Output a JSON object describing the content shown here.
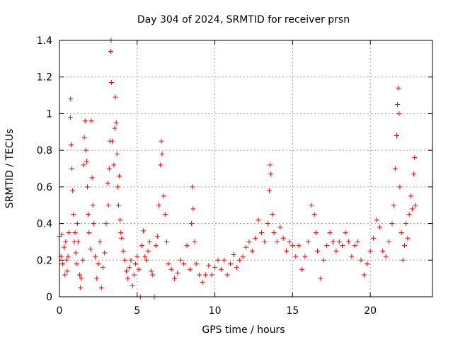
{
  "chart_data": {
    "type": "scatter",
    "title": "Day 304 of 2024, SRMTID for receiver prsn",
    "xlabel": "GPS time / hours",
    "ylabel": "SRMTID / TECUs",
    "xlim": [
      0,
      24
    ],
    "ylim": [
      0,
      1.4
    ],
    "xticks": [
      0,
      5,
      10,
      15,
      20
    ],
    "xtick_labels": [
      "0",
      "5",
      "10",
      "15",
      "20"
    ],
    "yticks": [
      0,
      0.2,
      0.4,
      0.6,
      0.8,
      1.0,
      1.2,
      1.4
    ],
    "ytick_labels": [
      "0",
      "0.2",
      "0.4",
      "0.6",
      "0.8",
      "1",
      "1.2",
      "1.4"
    ],
    "grid": true,
    "marker": "+",
    "color": "#ff0000",
    "series": [
      {
        "name": "SRMTID",
        "points": [
          [
            0.0,
            0.33
          ],
          [
            0.1,
            0.22
          ],
          [
            0.15,
            0.34
          ],
          [
            0.2,
            0.18
          ],
          [
            0.3,
            0.27
          ],
          [
            0.35,
            0.12
          ],
          [
            0.4,
            0.3
          ],
          [
            0.45,
            0.2
          ],
          [
            0.5,
            0.14
          ],
          [
            0.55,
            0.22
          ],
          [
            0.6,
            0.35
          ],
          [
            0.7,
            0.98
          ],
          [
            0.72,
            1.08
          ],
          [
            0.75,
            0.83
          ],
          [
            0.8,
            0.7
          ],
          [
            0.85,
            0.58
          ],
          [
            0.9,
            0.45
          ],
          [
            0.95,
            0.3
          ],
          [
            1.0,
            0.35
          ],
          [
            1.05,
            0.24
          ],
          [
            1.1,
            0.18
          ],
          [
            1.15,
            0.4
          ],
          [
            1.2,
            0.3
          ],
          [
            1.3,
            0.12
          ],
          [
            1.35,
            0.05
          ],
          [
            1.4,
            0.1
          ],
          [
            1.5,
            0.2
          ],
          [
            1.55,
            0.72
          ],
          [
            1.6,
            0.87
          ],
          [
            1.65,
            0.96
          ],
          [
            1.7,
            0.8
          ],
          [
            1.75,
            0.74
          ],
          [
            1.8,
            0.6
          ],
          [
            1.85,
            0.45
          ],
          [
            1.9,
            0.35
          ],
          [
            2.0,
            0.26
          ],
          [
            2.05,
            0.96
          ],
          [
            2.1,
            0.65
          ],
          [
            2.15,
            0.5
          ],
          [
            2.2,
            0.4
          ],
          [
            2.3,
            0.22
          ],
          [
            2.4,
            0.1
          ],
          [
            2.5,
            0.18
          ],
          [
            2.6,
            0.3
          ],
          [
            2.7,
            0.05
          ],
          [
            2.8,
            0.16
          ],
          [
            2.9,
            0.24
          ],
          [
            3.0,
            0.4
          ],
          [
            3.1,
            0.62
          ],
          [
            3.15,
            0.5
          ],
          [
            3.2,
            0.7
          ],
          [
            3.25,
            0.85
          ],
          [
            3.3,
            1.34
          ],
          [
            3.32,
            1.4
          ],
          [
            3.34,
            1.17
          ],
          [
            3.4,
            0.85
          ],
          [
            3.5,
            0.72
          ],
          [
            3.55,
            0.92
          ],
          [
            3.6,
            1.09
          ],
          [
            3.65,
            0.95
          ],
          [
            3.7,
            0.78
          ],
          [
            3.75,
            0.6
          ],
          [
            3.8,
            0.5
          ],
          [
            3.85,
            0.66
          ],
          [
            3.9,
            0.42
          ],
          [
            3.95,
            0.35
          ],
          [
            4.0,
            0.32
          ],
          [
            4.1,
            0.25
          ],
          [
            4.2,
            0.2
          ],
          [
            4.3,
            0.14
          ],
          [
            4.4,
            0.1
          ],
          [
            4.5,
            0.16
          ],
          [
            4.6,
            0.2
          ],
          [
            4.7,
            0.06
          ],
          [
            4.8,
            0.12
          ],
          [
            4.9,
            0.18
          ],
          [
            5.0,
            0.22
          ],
          [
            5.1,
            0.15
          ],
          [
            5.2,
            0.0
          ],
          [
            5.3,
            0.28
          ],
          [
            5.4,
            0.36
          ],
          [
            5.5,
            0.22
          ],
          [
            5.6,
            0.2
          ],
          [
            5.7,
            0.25
          ],
          [
            5.8,
            0.3
          ],
          [
            5.9,
            0.14
          ],
          [
            6.0,
            0.12
          ],
          [
            6.1,
            0.0
          ],
          [
            6.2,
            0.28
          ],
          [
            6.3,
            0.33
          ],
          [
            6.4,
            0.5
          ],
          [
            6.5,
            0.72
          ],
          [
            6.55,
            0.85
          ],
          [
            6.6,
            0.78
          ],
          [
            6.7,
            0.55
          ],
          [
            6.8,
            0.45
          ],
          [
            6.9,
            0.3
          ],
          [
            7.0,
            0.18
          ],
          [
            7.2,
            0.15
          ],
          [
            7.4,
            0.1
          ],
          [
            7.6,
            0.13
          ],
          [
            7.8,
            0.2
          ],
          [
            8.0,
            0.18
          ],
          [
            8.2,
            0.28
          ],
          [
            8.4,
            0.15
          ],
          [
            8.5,
            0.4
          ],
          [
            8.55,
            0.6
          ],
          [
            8.6,
            0.48
          ],
          [
            8.7,
            0.3
          ],
          [
            8.8,
            0.18
          ],
          [
            9.0,
            0.12
          ],
          [
            9.2,
            0.08
          ],
          [
            9.4,
            0.12
          ],
          [
            9.6,
            0.17
          ],
          [
            9.8,
            0.12
          ],
          [
            10.0,
            0.16
          ],
          [
            10.2,
            0.2
          ],
          [
            10.4,
            0.15
          ],
          [
            10.6,
            0.2
          ],
          [
            10.8,
            0.12
          ],
          [
            11.0,
            0.18
          ],
          [
            11.2,
            0.23
          ],
          [
            11.4,
            0.16
          ],
          [
            11.6,
            0.2
          ],
          [
            11.8,
            0.22
          ],
          [
            12.0,
            0.27
          ],
          [
            12.2,
            0.3
          ],
          [
            12.4,
            0.25
          ],
          [
            12.6,
            0.32
          ],
          [
            12.8,
            0.42
          ],
          [
            13.0,
            0.35
          ],
          [
            13.2,
            0.3
          ],
          [
            13.4,
            0.4
          ],
          [
            13.5,
            0.58
          ],
          [
            13.55,
            0.72
          ],
          [
            13.6,
            0.67
          ],
          [
            13.7,
            0.45
          ],
          [
            13.8,
            0.35
          ],
          [
            14.0,
            0.3
          ],
          [
            14.2,
            0.38
          ],
          [
            14.4,
            0.32
          ],
          [
            14.6,
            0.25
          ],
          [
            14.8,
            0.3
          ],
          [
            15.0,
            0.28
          ],
          [
            15.2,
            0.22
          ],
          [
            15.4,
            0.28
          ],
          [
            15.6,
            0.15
          ],
          [
            15.8,
            0.22
          ],
          [
            16.0,
            0.3
          ],
          [
            16.2,
            0.5
          ],
          [
            16.4,
            0.45
          ],
          [
            16.5,
            0.35
          ],
          [
            16.6,
            0.25
          ],
          [
            16.8,
            0.1
          ],
          [
            17.0,
            0.2
          ],
          [
            17.2,
            0.28
          ],
          [
            17.4,
            0.35
          ],
          [
            17.6,
            0.3
          ],
          [
            17.8,
            0.25
          ],
          [
            18.0,
            0.3
          ],
          [
            18.2,
            0.28
          ],
          [
            18.4,
            0.35
          ],
          [
            18.6,
            0.3
          ],
          [
            18.8,
            0.22
          ],
          [
            19.0,
            0.28
          ],
          [
            19.2,
            0.3
          ],
          [
            19.4,
            0.2
          ],
          [
            19.6,
            0.12
          ],
          [
            19.8,
            0.18
          ],
          [
            20.0,
            0.25
          ],
          [
            20.2,
            0.32
          ],
          [
            20.4,
            0.42
          ],
          [
            20.6,
            0.38
          ],
          [
            20.8,
            0.25
          ],
          [
            21.0,
            0.22
          ],
          [
            21.2,
            0.3
          ],
          [
            21.4,
            0.4
          ],
          [
            21.5,
            0.5
          ],
          [
            21.6,
            0.7
          ],
          [
            21.7,
            0.88
          ],
          [
            21.75,
            1.05
          ],
          [
            21.8,
            1.14
          ],
          [
            21.85,
            1.0
          ],
          [
            21.9,
            0.6
          ],
          [
            22.0,
            0.35
          ],
          [
            22.1,
            0.2
          ],
          [
            22.2,
            0.28
          ],
          [
            22.3,
            0.4
          ],
          [
            22.4,
            0.32
          ],
          [
            22.5,
            0.45
          ],
          [
            22.6,
            0.55
          ],
          [
            22.7,
            0.48
          ],
          [
            22.8,
            0.67
          ],
          [
            22.85,
            0.76
          ],
          [
            22.9,
            0.5
          ]
        ]
      }
    ]
  }
}
